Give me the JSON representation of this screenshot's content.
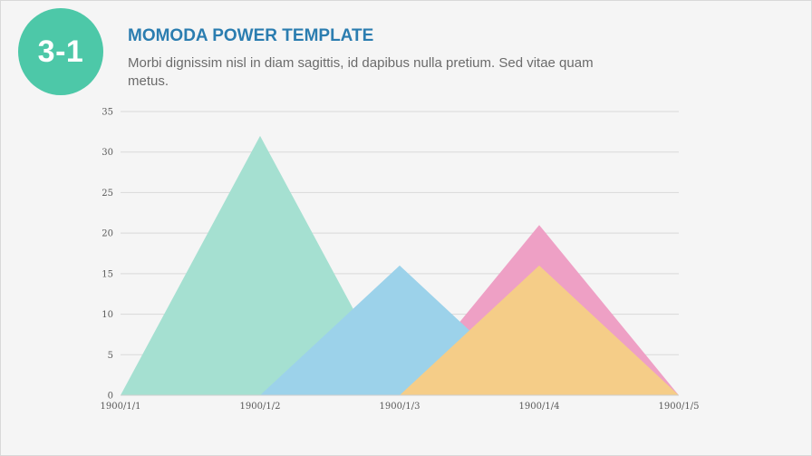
{
  "badge": {
    "label": "3-1"
  },
  "header": {
    "title": "MOMODA POWER TEMPLATE",
    "subtitle": "Morbi dignissim nisl in diam sagittis, id dapibus nulla pretium. Sed vitae quam metus."
  },
  "colors": {
    "badge": "#4dc8a8",
    "title": "#2b7db0",
    "series_1": "#a5e0d1",
    "series_2": "#eea0c5",
    "series_3": "#9cd2ea",
    "series_4": "#f5cd88",
    "grid": "#d9d9d9"
  },
  "chart_data": {
    "type": "area",
    "title": "",
    "xlabel": "",
    "ylabel": "",
    "categories": [
      "1900/1/1",
      "1900/1/2",
      "1900/1/3",
      "1900/1/4",
      "1900/1/5"
    ],
    "ylim": [
      0,
      35
    ],
    "yticks": [
      0,
      5,
      10,
      15,
      20,
      25,
      30,
      35
    ],
    "grid": true,
    "legend": "none",
    "series": [
      {
        "values": [
          0,
          32,
          0,
          0,
          0
        ],
        "color": "#a5e0d1"
      },
      {
        "values": [
          0,
          0,
          0,
          21,
          0
        ],
        "color": "#eea0c5"
      },
      {
        "values": [
          0,
          0,
          16,
          0,
          0
        ],
        "color": "#9cd2ea"
      },
      {
        "values": [
          0,
          0,
          0,
          16,
          0
        ],
        "color": "#f5cd88"
      }
    ]
  }
}
